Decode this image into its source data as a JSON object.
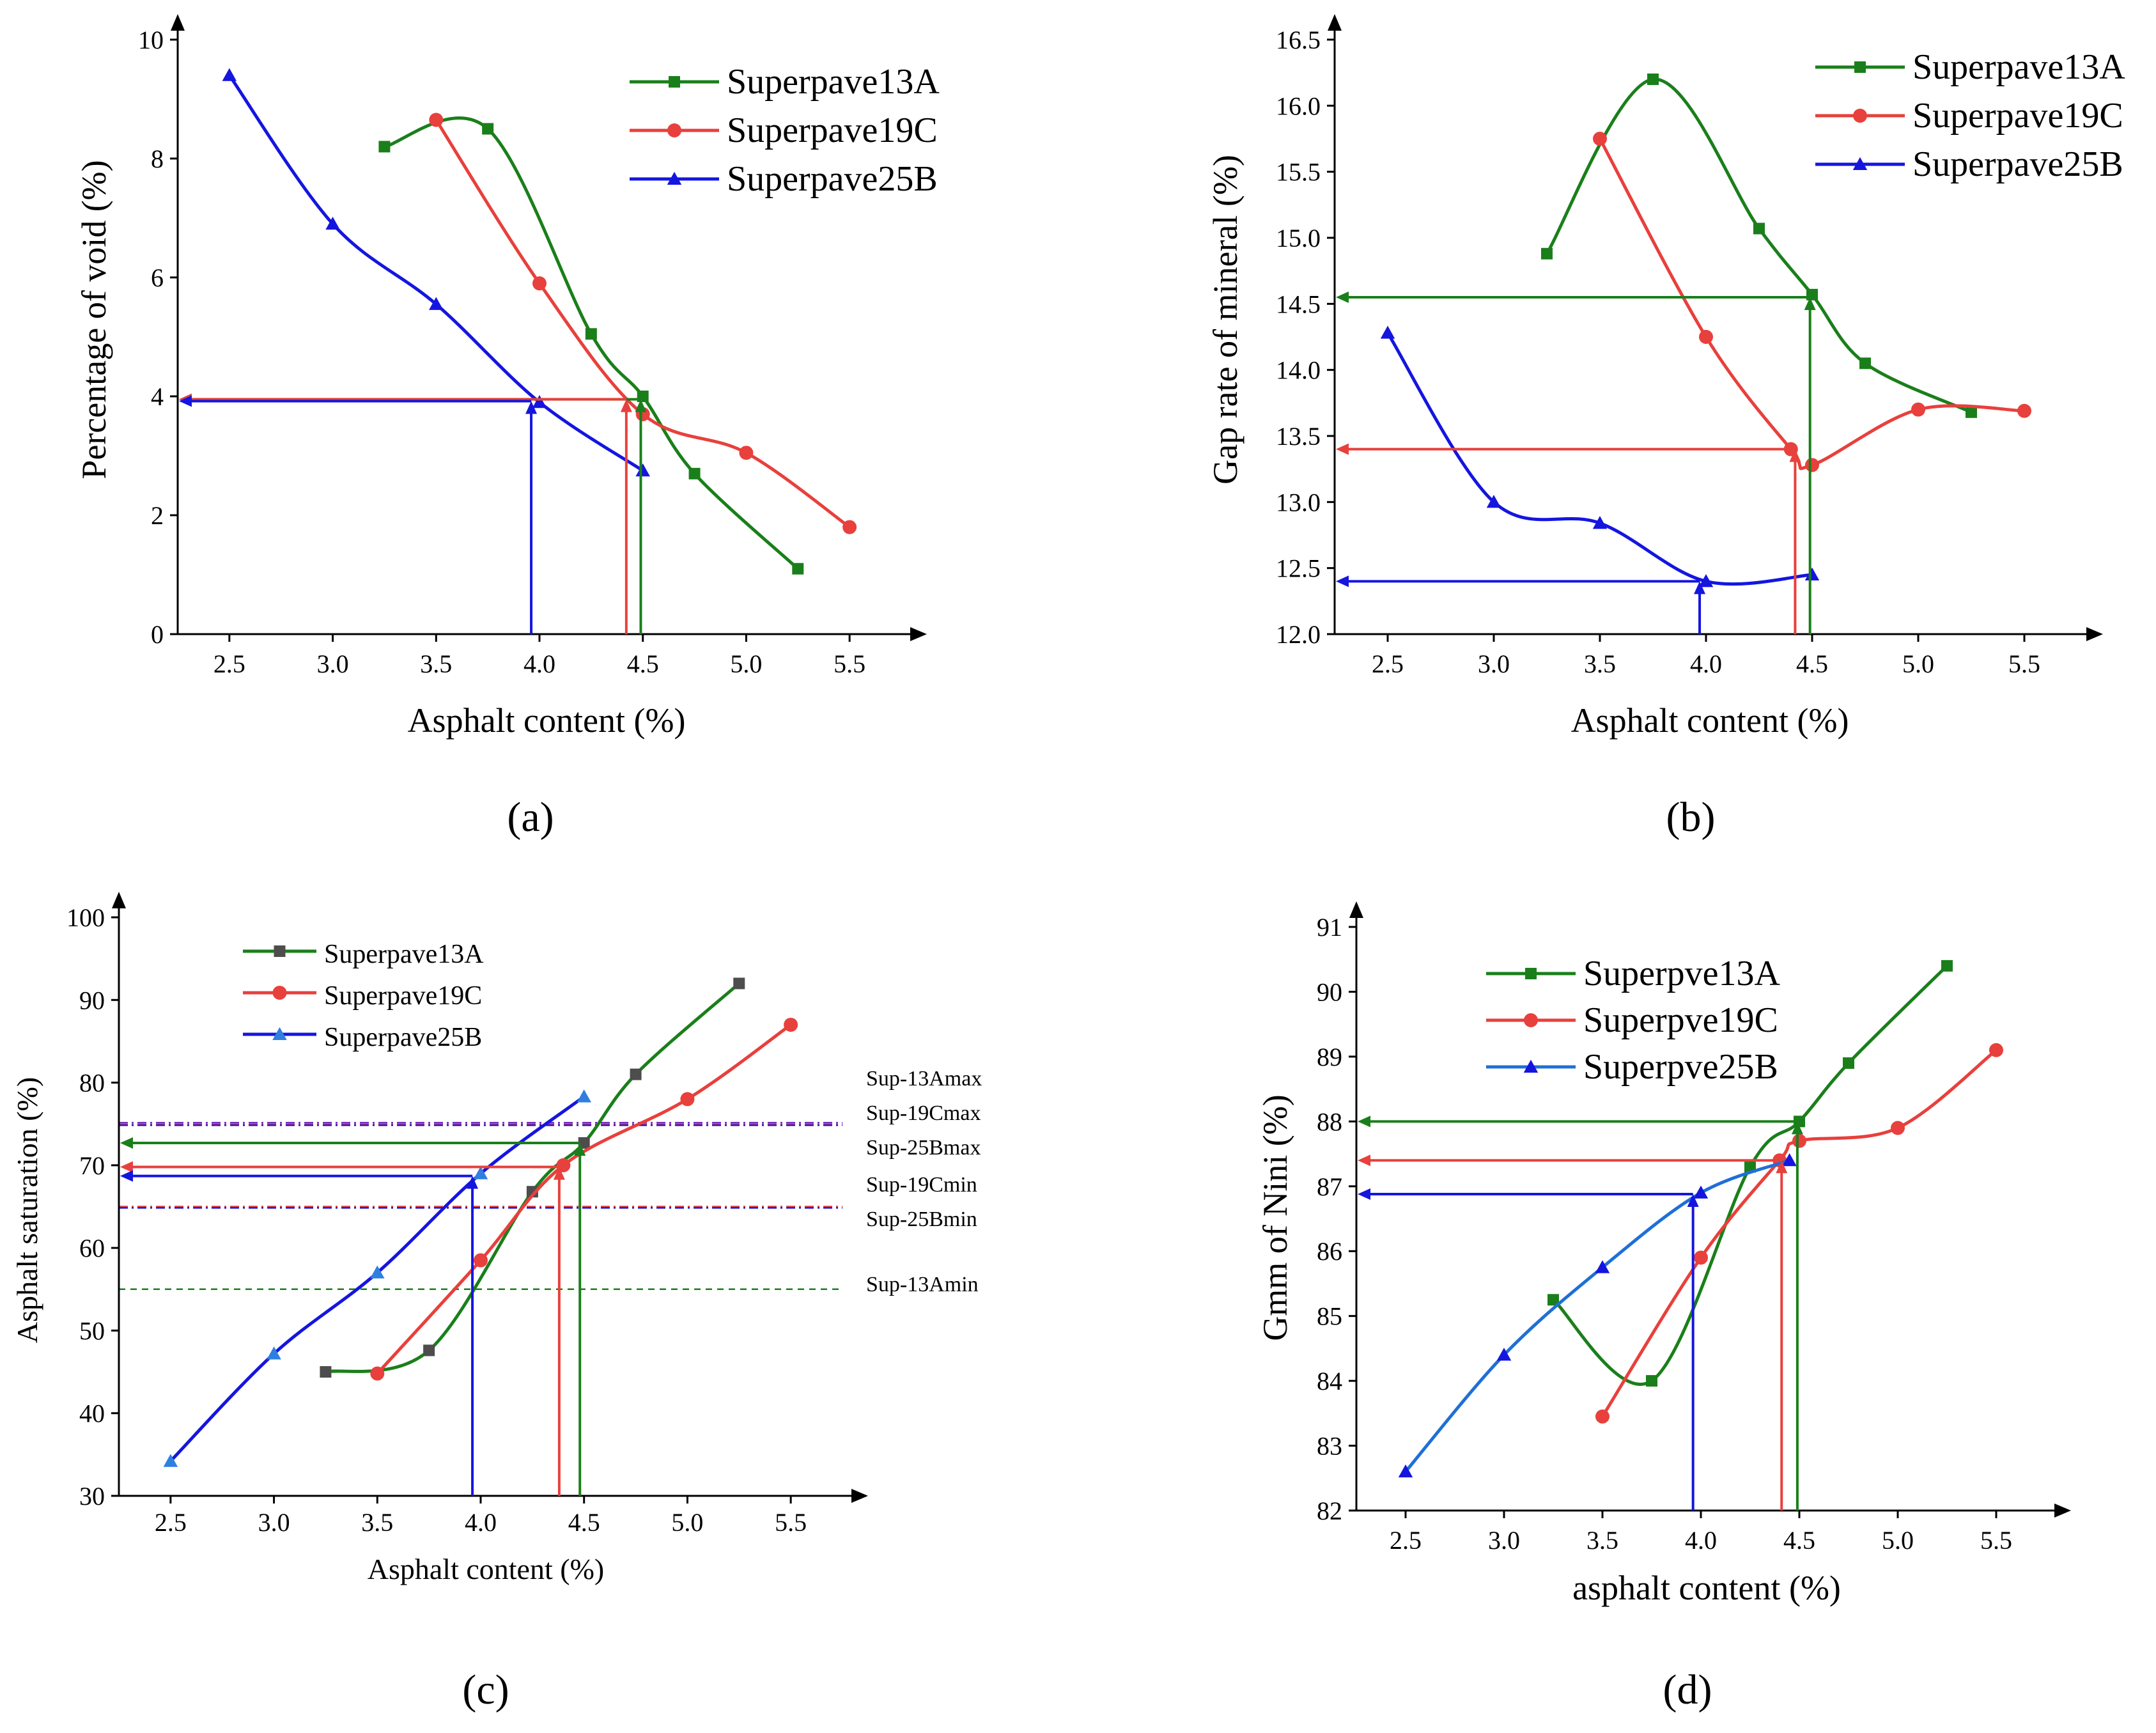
{
  "chart_data": [
    {
      "id": "a",
      "type": "line",
      "panel_label": "(a)",
      "xlabel": "Asphalt content (%)",
      "ylabel": "Percentage of  void  (%)",
      "xlim": [
        2.25,
        5.75
      ],
      "ylim": [
        0,
        10
      ],
      "xticks": [
        2.5,
        3.0,
        3.5,
        4.0,
        4.5,
        5.0,
        5.5
      ],
      "xtick_labels": [
        "2.5",
        "3.0",
        "3.5",
        "4.0",
        "4.5",
        "5.0",
        "5.5"
      ],
      "yticks": [
        0,
        2,
        4,
        6,
        8,
        10
      ],
      "ytick_labels": [
        "0",
        "2",
        "4",
        "6",
        "8",
        "10"
      ],
      "legend_position": "top-right",
      "series": [
        {
          "name": "Superpave13A",
          "color": "#1a7f1a",
          "marker": "square",
          "x": [
            3.25,
            3.75,
            4.25,
            4.5,
            4.75,
            5.25
          ],
          "y": [
            8.2,
            8.5,
            5.05,
            4.0,
            2.7,
            1.1
          ]
        },
        {
          "name": "Superpave19C",
          "color": "#e8403c",
          "marker": "circle",
          "x": [
            3.5,
            4.0,
            4.5,
            5.0,
            5.5
          ],
          "y": [
            8.65,
            5.9,
            3.7,
            3.05,
            1.8
          ]
        },
        {
          "name": "Superpave25B",
          "color": "#1515e0",
          "marker": "triangle",
          "x": [
            2.5,
            3.0,
            3.5,
            4.0,
            4.5
          ],
          "y": [
            9.4,
            6.9,
            5.55,
            3.9,
            2.75
          ]
        }
      ],
      "guides": [
        {
          "color": "#1a7f1a",
          "x": 4.49,
          "y": 3.95
        },
        {
          "color": "#e8403c",
          "x": 4.42,
          "y": 3.95
        },
        {
          "color": "#1515e0",
          "x": 3.96,
          "y": 3.92
        }
      ]
    },
    {
      "id": "b",
      "type": "line",
      "panel_label": "(b)",
      "xlabel": "Asphalt content (%)",
      "ylabel": "Gap rate of mineral (%)",
      "xlim": [
        2.25,
        5.75
      ],
      "ylim": [
        12.0,
        16.5
      ],
      "xticks": [
        2.5,
        3.0,
        3.5,
        4.0,
        4.5,
        5.0,
        5.5
      ],
      "xtick_labels": [
        "2.5",
        "3.0",
        "3.5",
        "4.0",
        "4.5",
        "5.0",
        "5.5"
      ],
      "yticks": [
        12.0,
        12.5,
        13.0,
        13.5,
        14.0,
        14.5,
        15.0,
        15.5,
        16.0,
        16.5
      ],
      "ytick_labels": [
        "12.0",
        "12.5",
        "13.0",
        "13.5",
        "14.0",
        "14.5",
        "15.0",
        "15.5",
        "16.0",
        "16.5"
      ],
      "legend_position": "top-right",
      "series": [
        {
          "name": "Superpave13A",
          "color": "#1a7f1a",
          "marker": "square",
          "x": [
            3.25,
            3.75,
            4.25,
            4.5,
            4.75,
            5.25
          ],
          "y": [
            14.88,
            16.2,
            15.07,
            14.57,
            14.05,
            13.68
          ]
        },
        {
          "name": "Superpave19C",
          "color": "#e8403c",
          "marker": "circle",
          "x": [
            3.5,
            4.0,
            4.4,
            4.5,
            5.0,
            5.5
          ],
          "y": [
            15.75,
            14.25,
            13.4,
            13.28,
            13.7,
            13.69
          ]
        },
        {
          "name": "Superpave25B",
          "color": "#1515e0",
          "marker": "triangle",
          "x": [
            2.5,
            3.0,
            3.5,
            4.0,
            4.5
          ],
          "y": [
            14.28,
            13.0,
            12.84,
            12.4,
            12.45
          ]
        }
      ],
      "guides": [
        {
          "color": "#1a7f1a",
          "x": 4.49,
          "y": 14.55
        },
        {
          "color": "#e8403c",
          "x": 4.42,
          "y": 13.4
        },
        {
          "color": "#1515e0",
          "x": 3.97,
          "y": 12.4
        }
      ]
    },
    {
      "id": "c",
      "type": "line",
      "panel_label": "(c)",
      "xlabel": "Asphalt content (%)",
      "ylabel": "Asphalt saturation (%)",
      "xlim": [
        2.25,
        5.75
      ],
      "ylim": [
        30,
        100
      ],
      "xticks": [
        2.5,
        3.0,
        3.5,
        4.0,
        4.5,
        5.0,
        5.5
      ],
      "xtick_labels": [
        "2.5",
        "3.0",
        "3.5",
        "4.0",
        "4.5",
        "5.0",
        "5.5"
      ],
      "yticks": [
        30,
        40,
        50,
        60,
        70,
        80,
        90,
        100
      ],
      "ytick_labels": [
        "30",
        "40",
        "50",
        "60",
        "70",
        "80",
        "90",
        "100"
      ],
      "legend_position": "top-left",
      "series": [
        {
          "name": "Superpave13A",
          "color": "#1a7f1a",
          "marker_color": "#4d4d4d",
          "marker": "square",
          "x": [
            3.25,
            3.75,
            4.25,
            4.5,
            4.75,
            5.25
          ],
          "y": [
            45.0,
            47.6,
            66.8,
            72.7,
            81.0,
            92.0
          ]
        },
        {
          "name": "Superpave19C",
          "color": "#e8403c",
          "marker": "circle",
          "x": [
            3.5,
            4.0,
            4.4,
            5.0,
            5.5
          ],
          "y": [
            44.8,
            58.5,
            70.0,
            78.0,
            87.0
          ]
        },
        {
          "name": "Superpave25B",
          "color": "#1515e0",
          "marker_color": "#2f7fe0",
          "marker": "triangle",
          "x": [
            2.5,
            3.0,
            3.5,
            4.0,
            4.5
          ],
          "y": [
            34.2,
            47.2,
            57.0,
            69.0,
            78.3
          ]
        }
      ],
      "guides": [
        {
          "color": "#1a7f1a",
          "x": 4.48,
          "y": 72.7
        },
        {
          "color": "#e8403c",
          "x": 4.38,
          "y": 69.8
        },
        {
          "color": "#1515e0",
          "x": 3.96,
          "y": 68.7
        }
      ],
      "reference_lines": [
        {
          "label": "Sup-13Amax",
          "y": 75,
          "color": "#7a2fc0"
        },
        {
          "label": "Sup-19Cmax",
          "y": 75,
          "color": "#e8403c"
        },
        {
          "label": "Sup-25Bmax",
          "y": 75,
          "color": "#1515e0"
        },
        {
          "label": "Sup-19Cmin",
          "y": 65,
          "color": "#e8403c"
        },
        {
          "label": "Sup-25Bmin",
          "y": 65,
          "color": "#1515e0"
        },
        {
          "label": "Sup-13Amin",
          "y": 55,
          "color": "#1a7f1a"
        }
      ]
    },
    {
      "id": "d",
      "type": "line",
      "panel_label": "(d)",
      "xlabel": "asphalt content (%)",
      "ylabel": "Gmm of Nini (%)",
      "xlim": [
        2.25,
        5.75
      ],
      "ylim": [
        82,
        91
      ],
      "xticks": [
        2.5,
        3.0,
        3.5,
        4.0,
        4.5,
        5.0,
        5.5
      ],
      "xtick_labels": [
        "2.5",
        "3.0",
        "3.5",
        "4.0",
        "4.5",
        "5.0",
        "5.5"
      ],
      "yticks": [
        82,
        83,
        84,
        85,
        86,
        87,
        88,
        89,
        90,
        91
      ],
      "ytick_labels": [
        "82",
        "83",
        "84",
        "85",
        "86",
        "87",
        "88",
        "89",
        "90",
        "91"
      ],
      "legend_position": "top-left",
      "series": [
        {
          "name": "Superpve13A",
          "color": "#1a7f1a",
          "marker": "square",
          "x": [
            3.25,
            3.75,
            4.25,
            4.5,
            4.75,
            5.25
          ],
          "y": [
            85.25,
            84.0,
            87.3,
            88.0,
            88.9,
            90.4
          ]
        },
        {
          "name": "Superpve19C",
          "color": "#e8403c",
          "marker": "circle",
          "x": [
            3.5,
            4.0,
            4.4,
            4.5,
            5.0,
            5.5
          ],
          "y": [
            83.45,
            85.9,
            87.4,
            87.7,
            87.9,
            89.1
          ]
        },
        {
          "name": "Superpve25B",
          "color": "#1f6fd6",
          "marker_color": "#1515e0",
          "marker": "triangle",
          "x": [
            2.5,
            3.0,
            3.5,
            4.0,
            4.45
          ],
          "y": [
            82.6,
            84.4,
            85.75,
            86.9,
            87.4
          ]
        }
      ],
      "guides": [
        {
          "color": "#1a7f1a",
          "x": 4.49,
          "y": 88.0
        },
        {
          "color": "#e8403c",
          "x": 4.41,
          "y": 87.4
        },
        {
          "color": "#1515e0",
          "x": 3.96,
          "y": 86.88
        }
      ]
    }
  ]
}
